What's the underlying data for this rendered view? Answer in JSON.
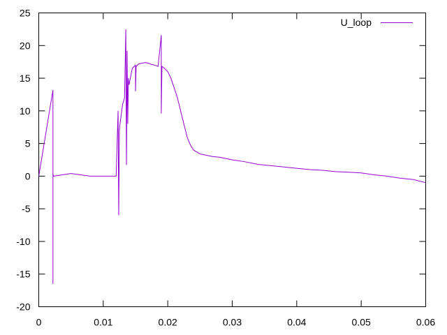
{
  "chart_data": {
    "type": "line",
    "title": "",
    "xlabel": "",
    "ylabel": "",
    "xlim": [
      0,
      0.06
    ],
    "ylim": [
      -20,
      25
    ],
    "x_ticks": [
      0,
      0.01,
      0.02,
      0.03,
      0.04,
      0.05,
      0.06
    ],
    "x_tick_labels": [
      "0",
      "0.01",
      "0.02",
      "0.03",
      "0.04",
      "0.05",
      "0.06"
    ],
    "y_ticks": [
      -20,
      -15,
      -10,
      -5,
      0,
      5,
      10,
      15,
      20,
      25
    ],
    "y_tick_labels": [
      "-20",
      "-15",
      "-10",
      "-5",
      "0",
      "5",
      "10",
      "15",
      "20",
      "25"
    ],
    "grid": false,
    "legend": {
      "position": "top-right"
    },
    "series": [
      {
        "name": "U_loop",
        "color": "#9400d3",
        "x": [
          0,
          0.0022,
          0.0022,
          0.0022,
          0.0023,
          0.005,
          0.008,
          0.012,
          0.0123,
          0.0124,
          0.0125,
          0.0126,
          0.0128,
          0.013,
          0.0133,
          0.0135,
          0.0136,
          0.0137,
          0.0138,
          0.0139,
          0.014,
          0.0145,
          0.015,
          0.015,
          0.0151,
          0.0155,
          0.016,
          0.0165,
          0.017,
          0.0175,
          0.018,
          0.0185,
          0.019,
          0.019,
          0.0191,
          0.0195,
          0.02,
          0.0205,
          0.021,
          0.0215,
          0.022,
          0.0225,
          0.023,
          0.0235,
          0.024,
          0.025,
          0.026,
          0.027,
          0.028,
          0.029,
          0.03,
          0.032,
          0.034,
          0.036,
          0.038,
          0.04,
          0.042,
          0.044,
          0.046,
          0.048,
          0.05,
          0.052,
          0.054,
          0.056,
          0.058,
          0.06
        ],
        "values": [
          0,
          13.2,
          -16.5,
          0.3,
          0,
          0.4,
          0,
          0,
          10,
          -6,
          7,
          8,
          9.5,
          11,
          12,
          22.5,
          1.7,
          19.2,
          8,
          15,
          14,
          16.5,
          17,
          13,
          16.8,
          17.2,
          17.3,
          17.4,
          17.3,
          17.1,
          17,
          16.8,
          21.6,
          9.6,
          16.8,
          16.5,
          16,
          15,
          13.5,
          12,
          10,
          8,
          6,
          4.8,
          4,
          3.4,
          3.2,
          3,
          2.9,
          2.7,
          2.5,
          2.2,
          1.8,
          1.6,
          1.4,
          1.2,
          1.0,
          0.9,
          0.7,
          0.6,
          0.5,
          0.2,
          0,
          -0.3,
          -0.5,
          -1
        ]
      }
    ]
  }
}
